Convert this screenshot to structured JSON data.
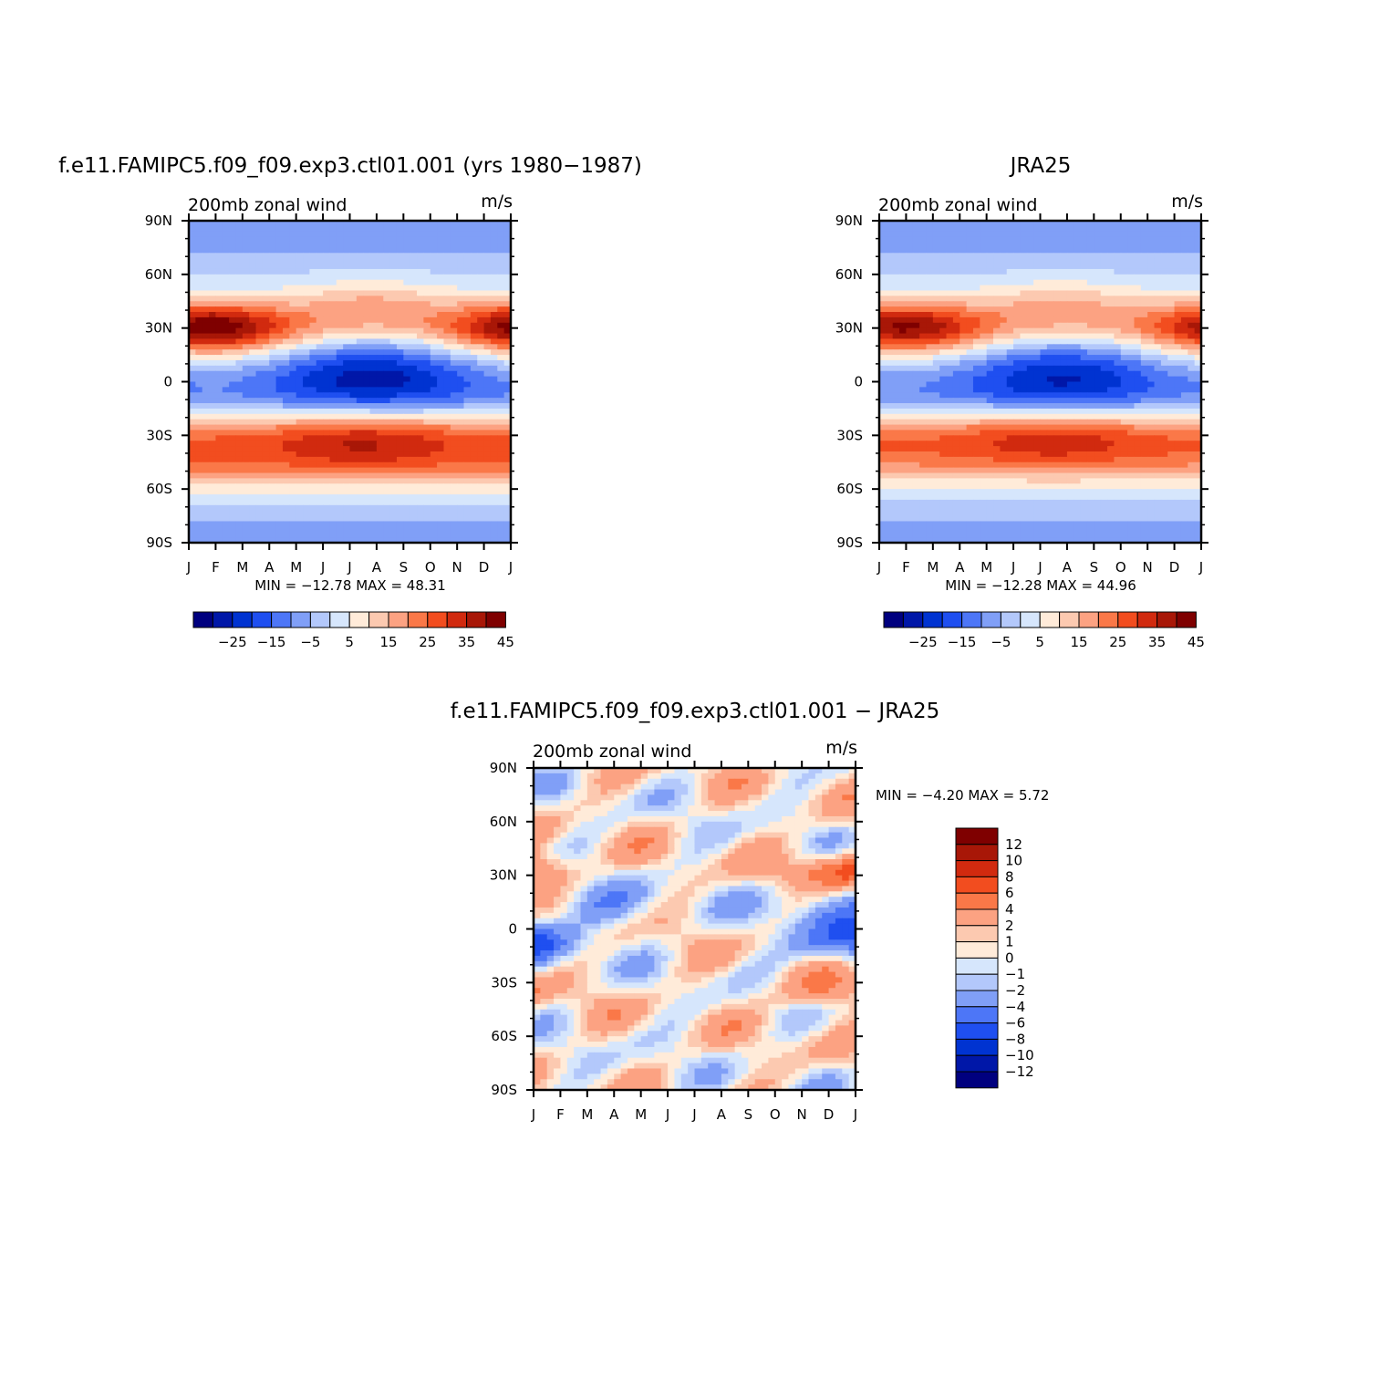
{
  "palette": {
    "colors": [
      "#00007f",
      "#0017a8",
      "#0033d1",
      "#1f4ff0",
      "#4d76f7",
      "#809ff7",
      "#b3c8fb",
      "#d6e6fc",
      "#ffebd9",
      "#fcc9b0",
      "#fca282",
      "#fa7848",
      "#f24d1f",
      "#d12a0f",
      "#a81707",
      "#7f0000"
    ]
  },
  "chart_data": [
    {
      "type": "heatmap",
      "title": "f.e11.FAMIPC5.f09_f09.exp3.ctl01.001 (yrs 1980−1987)",
      "left_label": "200mb  zonal  wind",
      "right_label": "m/s",
      "x_ticks": [
        "J",
        "F",
        "M",
        "A",
        "M",
        "J",
        "J",
        "A",
        "S",
        "O",
        "N",
        "D",
        "J"
      ],
      "y_ticks": [
        "90N",
        "60N",
        "30N",
        "0",
        "30S",
        "60S",
        "90S"
      ],
      "stats": "MIN =  −12.78  MAX =    48.31",
      "colorbar_labels": [
        "−25",
        "−15",
        "−5",
        "5",
        "15",
        "25",
        "35",
        "45"
      ],
      "levels": [
        -30,
        -25,
        -20,
        -15,
        -10,
        -5,
        0,
        5,
        10,
        15,
        20,
        25,
        30,
        35,
        40,
        45,
        50
      ],
      "min": -12.78,
      "max": 48.31
    },
    {
      "type": "heatmap",
      "title": "JRA25",
      "left_label": "200mb  zonal  wind",
      "right_label": "m/s",
      "x_ticks": [
        "J",
        "F",
        "M",
        "A",
        "M",
        "J",
        "J",
        "A",
        "S",
        "O",
        "N",
        "D",
        "J"
      ],
      "y_ticks": [
        "90N",
        "60N",
        "30N",
        "0",
        "30S",
        "60S",
        "90S"
      ],
      "stats": "MIN =  −12.28  MAX =    44.96",
      "colorbar_labels": [
        "−25",
        "−15",
        "−5",
        "5",
        "15",
        "25",
        "35",
        "45"
      ],
      "levels": [
        -30,
        -25,
        -20,
        -15,
        -10,
        -5,
        0,
        5,
        10,
        15,
        20,
        25,
        30,
        35,
        40,
        45,
        50
      ],
      "min": -12.28,
      "max": 44.96
    },
    {
      "type": "heatmap",
      "title": "f.e11.FAMIPC5.f09_f09.exp3.ctl01.001  −  JRA25",
      "left_label": "200mb  zonal  wind",
      "right_label": "m/s",
      "x_ticks": [
        "J",
        "F",
        "M",
        "A",
        "M",
        "J",
        "J",
        "A",
        "S",
        "O",
        "N",
        "D",
        "J"
      ],
      "y_ticks": [
        "90N",
        "60N",
        "30N",
        "0",
        "30S",
        "60S",
        "90S"
      ],
      "stats": "MIN =    −4.20  MAX =     5.72",
      "colorbar_labels": [
        "12",
        "10",
        "8",
        "6",
        "4",
        "2",
        "1",
        "0",
        "−1",
        "−2",
        "−4",
        "−6",
        "−8",
        "−10",
        "−12"
      ],
      "levels": [
        -14,
        -12,
        -10,
        -8,
        -6,
        -4,
        -2,
        -1,
        0,
        1,
        2,
        4,
        6,
        8,
        10,
        12,
        14
      ],
      "min": -4.2,
      "max": 5.72
    }
  ]
}
